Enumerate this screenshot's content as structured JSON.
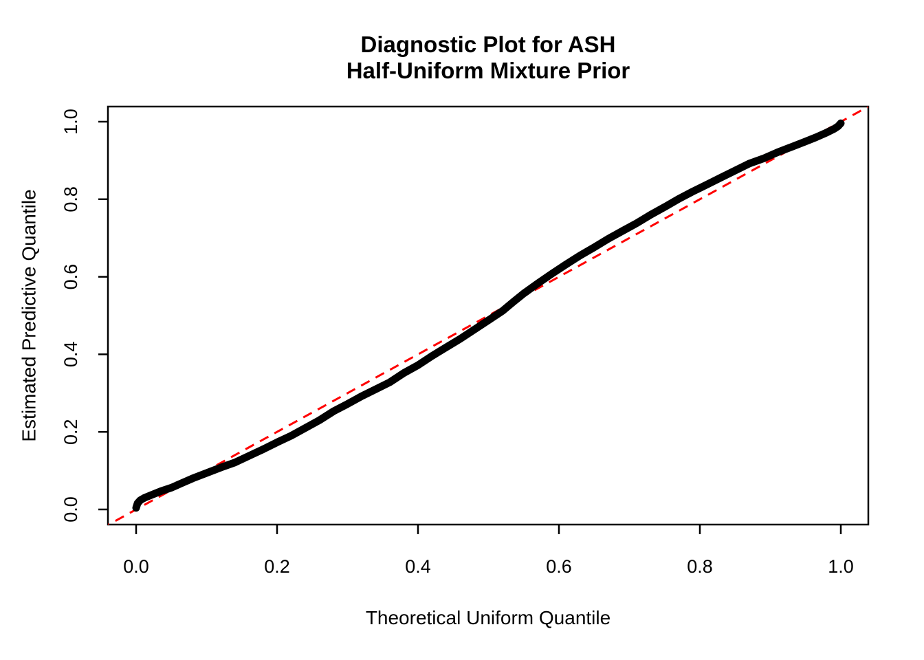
{
  "figure": {
    "title_line1": "Diagnostic Plot for ASH",
    "title_line2": "Half-Uniform Mixture Prior",
    "background": "#ffffff"
  },
  "colors": {
    "curve": "#000000",
    "reference_line": "#ff0000",
    "axis": "#000000",
    "text": "#000000"
  },
  "chart_data": {
    "type": "line",
    "title": "Diagnostic Plot for ASH Half-Uniform Mixture Prior",
    "xlabel": "Theoretical Uniform Quantile",
    "ylabel": "Estimated Predictive Quantile",
    "xlim": [
      -0.04,
      1.04
    ],
    "ylim": [
      -0.04,
      1.04
    ],
    "grid": false,
    "legend": "none",
    "x_ticks": {
      "values": [
        0.0,
        0.2,
        0.4,
        0.6,
        0.8,
        1.0
      ],
      "labels": [
        "0.0",
        "0.2",
        "0.4",
        "0.6",
        "0.8",
        "1.0"
      ]
    },
    "y_ticks": {
      "values": [
        0.0,
        0.2,
        0.4,
        0.6,
        0.8,
        1.0
      ],
      "labels": [
        "0.0",
        "0.2",
        "0.4",
        "0.6",
        "0.8",
        "1.0"
      ]
    },
    "series": [
      {
        "name": "estimated-predictive-quantile-curve",
        "style": "thick-solid",
        "color": "#000000",
        "stroke_width": 11,
        "points": [
          [
            0.0,
            0.004
          ],
          [
            0.002,
            0.016
          ],
          [
            0.006,
            0.024
          ],
          [
            0.012,
            0.03
          ],
          [
            0.02,
            0.036
          ],
          [
            0.035,
            0.047
          ],
          [
            0.05,
            0.056
          ],
          [
            0.065,
            0.068
          ],
          [
            0.08,
            0.08
          ],
          [
            0.1,
            0.094
          ],
          [
            0.12,
            0.108
          ],
          [
            0.14,
            0.121
          ],
          [
            0.16,
            0.138
          ],
          [
            0.18,
            0.155
          ],
          [
            0.2,
            0.173
          ],
          [
            0.22,
            0.19
          ],
          [
            0.24,
            0.21
          ],
          [
            0.26,
            0.23
          ],
          [
            0.28,
            0.253
          ],
          [
            0.3,
            0.272
          ],
          [
            0.32,
            0.292
          ],
          [
            0.34,
            0.31
          ],
          [
            0.36,
            0.328
          ],
          [
            0.38,
            0.352
          ],
          [
            0.4,
            0.372
          ],
          [
            0.42,
            0.396
          ],
          [
            0.44,
            0.418
          ],
          [
            0.46,
            0.44
          ],
          [
            0.48,
            0.464
          ],
          [
            0.5,
            0.488
          ],
          [
            0.52,
            0.512
          ],
          [
            0.535,
            0.535
          ],
          [
            0.55,
            0.557
          ],
          [
            0.57,
            0.583
          ],
          [
            0.59,
            0.608
          ],
          [
            0.61,
            0.632
          ],
          [
            0.63,
            0.655
          ],
          [
            0.65,
            0.676
          ],
          [
            0.67,
            0.698
          ],
          [
            0.69,
            0.718
          ],
          [
            0.71,
            0.738
          ],
          [
            0.73,
            0.76
          ],
          [
            0.75,
            0.78
          ],
          [
            0.77,
            0.801
          ],
          [
            0.79,
            0.82
          ],
          [
            0.81,
            0.838
          ],
          [
            0.83,
            0.856
          ],
          [
            0.85,
            0.874
          ],
          [
            0.87,
            0.892
          ],
          [
            0.89,
            0.905
          ],
          [
            0.91,
            0.921
          ],
          [
            0.93,
            0.935
          ],
          [
            0.95,
            0.949
          ],
          [
            0.965,
            0.96
          ],
          [
            0.98,
            0.972
          ],
          [
            0.99,
            0.981
          ],
          [
            0.996,
            0.988
          ],
          [
            1.0,
            0.996
          ]
        ]
      },
      {
        "name": "reference-diagonal",
        "style": "dashed",
        "color": "#ff0000",
        "stroke_width": 3,
        "dash": [
          14,
          10
        ],
        "points": [
          [
            -0.05,
            -0.05
          ],
          [
            1.05,
            1.05
          ]
        ]
      }
    ]
  }
}
